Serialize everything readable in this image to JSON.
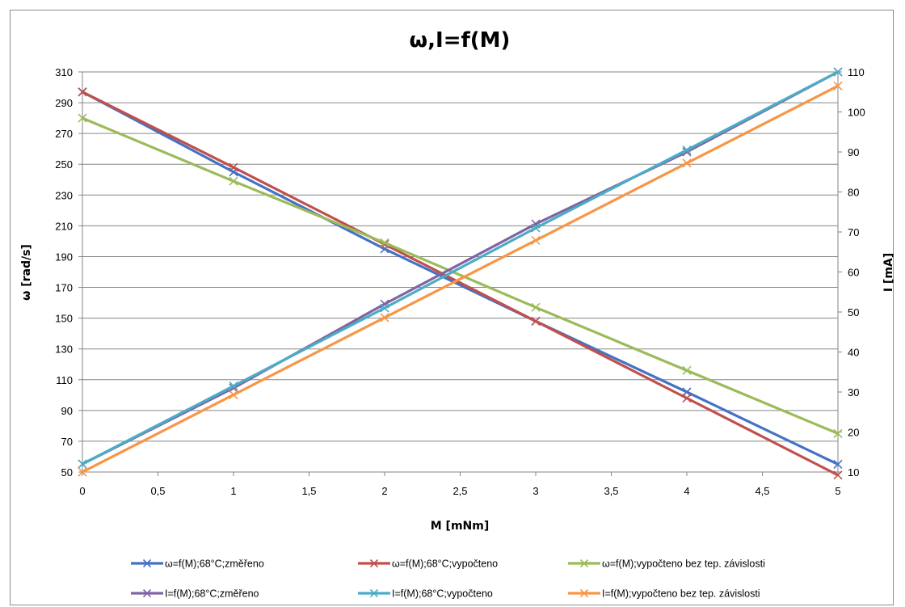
{
  "chart_data": {
    "type": "line",
    "title": "ω,I=f(M)",
    "xlabel": "M [mNm]",
    "ylabel_left": "ω [rad/s]",
    "ylabel_right": "I [mA]",
    "x": [
      0,
      1,
      2,
      3,
      4,
      5
    ],
    "x_ticks": [
      "0",
      "0,5",
      "1",
      "1,5",
      "2",
      "2,5",
      "3",
      "3,5",
      "4",
      "4,5",
      "5"
    ],
    "x_tick_values": [
      0,
      0.5,
      1,
      1.5,
      2,
      2.5,
      3,
      3.5,
      4,
      4.5,
      5
    ],
    "xlim": [
      0,
      5
    ],
    "ylim_left": [
      50,
      310
    ],
    "ylim_right": [
      10,
      110
    ],
    "y_ticks_left": [
      "50",
      "70",
      "90",
      "110",
      "130",
      "150",
      "170",
      "190",
      "210",
      "230",
      "250",
      "270",
      "290",
      "310"
    ],
    "y_tick_values_left": [
      50,
      70,
      90,
      110,
      130,
      150,
      170,
      190,
      210,
      230,
      250,
      270,
      290,
      310
    ],
    "y_ticks_right": [
      "10",
      "20",
      "30",
      "40",
      "50",
      "60",
      "70",
      "80",
      "90",
      "100",
      "110"
    ],
    "y_tick_values_right": [
      10,
      20,
      30,
      40,
      50,
      60,
      70,
      80,
      90,
      100,
      110
    ],
    "grid": true,
    "legend_position": "bottom",
    "series": [
      {
        "name": "ω=f(M);68°C;změřeno",
        "axis": "left",
        "color": "#4472c4",
        "values": [
          297,
          245,
          195,
          148,
          102,
          55
        ]
      },
      {
        "name": "ω=f(M);68°C;vypočteno",
        "axis": "left",
        "color": "#c0504d",
        "values": [
          297,
          248,
          198,
          148,
          98,
          48
        ]
      },
      {
        "name": "ω=f(M);vypočteno bez tep. závislosti",
        "axis": "left",
        "color": "#9bbb59",
        "values": [
          280,
          239,
          199,
          157,
          116,
          75
        ]
      },
      {
        "name": "I=f(M);68°C;změřeno",
        "axis": "right",
        "color": "#8064a2",
        "values": [
          12,
          31,
          52,
          72,
          90,
          110
        ]
      },
      {
        "name": "I=f(M);68°C;vypočteno",
        "axis": "right",
        "color": "#4bacc6",
        "values": [
          12,
          31.5,
          51,
          71,
          90.5,
          110
        ]
      },
      {
        "name": "I=f(M);vypočteno bez tep. závislosti",
        "axis": "right",
        "color": "#f79646",
        "values": [
          10,
          29.3,
          48.6,
          67.9,
          87.2,
          106.5
        ]
      }
    ]
  }
}
